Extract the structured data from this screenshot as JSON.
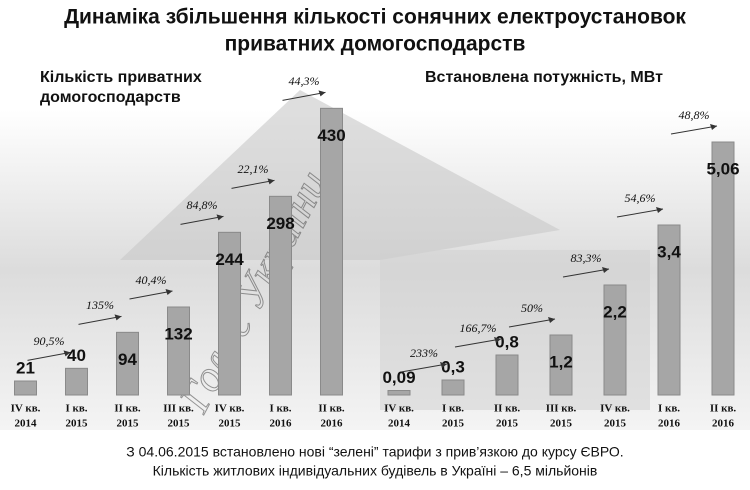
{
  "title": [
    "Динаміка збільшення кількості сонячних електроустановок",
    "приватних домогосподарств"
  ],
  "watermark": "Голос України",
  "notes": [
    "З 04.06.2015 встановлено нові “зелені” тарифи з прив’язкою до курсу ЄВРО.",
    "Кількість житлових  індивідуальних  будівель в Україні – 6,5 мільйонів"
  ],
  "chart_data": [
    {
      "type": "bar",
      "title": [
        "Кількість приватних",
        "домогосподарств"
      ],
      "categories": [
        [
          "IV кв.",
          "2014"
        ],
        [
          "I кв.",
          "2015"
        ],
        [
          "II кв.",
          "2015"
        ],
        [
          "III кв.",
          "2015"
        ],
        [
          "IV кв.",
          "2015"
        ],
        [
          "I кв.",
          "2016"
        ],
        [
          "II кв.",
          "2016"
        ]
      ],
      "values": [
        21,
        40,
        94,
        132,
        244,
        298,
        430
      ],
      "annotations": [
        "90,5%",
        "135%",
        "40,4%",
        "84,8%",
        "22,1%",
        "44,3%"
      ],
      "color": "#a6a6a6",
      "ylim": [
        0,
        450
      ]
    },
    {
      "type": "bar",
      "title": [
        "Встановлена потужність, МВт"
      ],
      "categories": [
        [
          "IV кв.",
          "2014"
        ],
        [
          "I кв.",
          "2015"
        ],
        [
          "II кв.",
          "2015"
        ],
        [
          "III кв.",
          "2015"
        ],
        [
          "IV кв.",
          "2015"
        ],
        [
          "I кв.",
          "2016"
        ],
        [
          "II кв.",
          "2016"
        ]
      ],
      "values": [
        0.09,
        0.3,
        0.8,
        1.2,
        2.2,
        3.4,
        5.06
      ],
      "value_labels": [
        "0,09",
        "0,3",
        "0,8",
        "1,2",
        "2,2",
        "3,4",
        "5,06"
      ],
      "annotations": [
        "233%",
        "166,7%",
        "50%",
        "83,3%",
        "54,6%",
        "48,8%"
      ],
      "color": "#a6a6a6",
      "ylim": [
        0,
        6
      ]
    }
  ]
}
